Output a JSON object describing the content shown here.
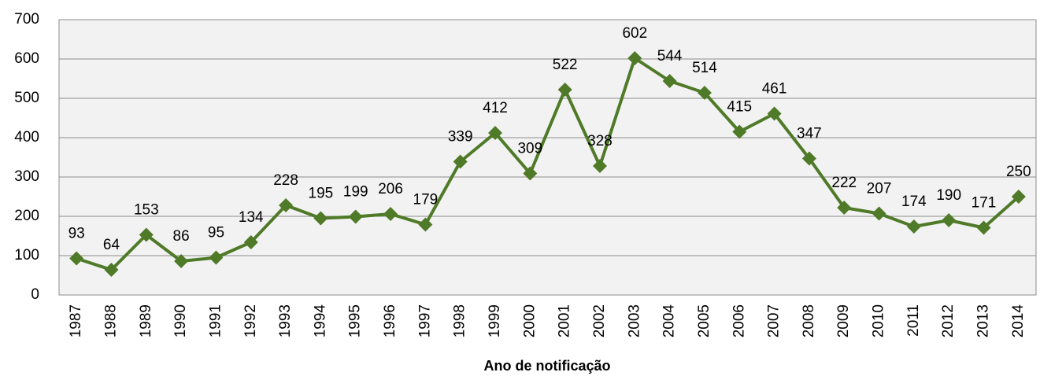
{
  "chart_data": {
    "type": "line",
    "x_label": "Ano de notificação",
    "categories": [
      "1987",
      "1988",
      "1989",
      "1990",
      "1991",
      "1992",
      "1993",
      "1994",
      "1995",
      "1996",
      "1997",
      "1998",
      "1999",
      "2000",
      "2001",
      "2002",
      "2003",
      "2004",
      "2005",
      "2006",
      "2007",
      "2008",
      "2009",
      "2010",
      "2011",
      "2012",
      "2013",
      "2014"
    ],
    "series": [
      {
        "color": "#4f7a28",
        "values": [
          93,
          64,
          153,
          86,
          95,
          134,
          228,
          195,
          199,
          206,
          179,
          339,
          412,
          309,
          522,
          328,
          602,
          544,
          514,
          415,
          461,
          347,
          222,
          207,
          174,
          190,
          171,
          250
        ]
      }
    ],
    "ylim": [
      0,
      700
    ],
    "yticks": [
      0,
      100,
      200,
      300,
      400,
      500,
      600,
      700
    ],
    "grid": true
  }
}
